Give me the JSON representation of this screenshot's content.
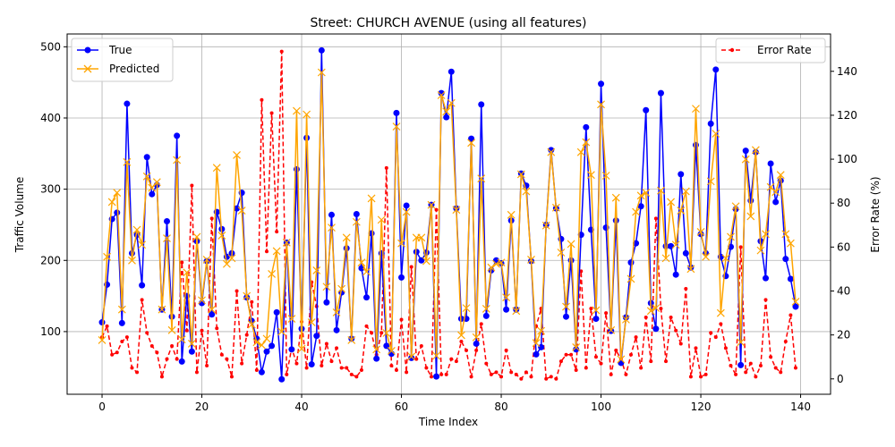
{
  "chart_data": {
    "type": "line",
    "title": "Street: CHURCH AVENUE (using all features)",
    "xlabel": "Time Index",
    "ylabel_left": "Traffic Volume",
    "ylabel_right": "Error Rate (%)",
    "xlim": [
      -7,
      146
    ],
    "ylim_left": [
      12,
      518
    ],
    "ylim_right": [
      -7,
      157
    ],
    "x_ticks": [
      0,
      20,
      40,
      60,
      80,
      100,
      120,
      140
    ],
    "y_ticks_left": [
      100,
      200,
      300,
      400,
      500
    ],
    "y_ticks_right": [
      0,
      20,
      40,
      60,
      80,
      100,
      120,
      140
    ],
    "grid": true,
    "legend_left_position": "upper-left",
    "legend_right_position": "upper-right",
    "colors": {
      "true": "#0000ff",
      "predicted": "#ffa500",
      "error": "#ff0000"
    },
    "series": [
      {
        "name": "True",
        "axis": "left",
        "values": [
          113,
          166,
          258,
          267,
          112,
          420,
          210,
          236,
          165,
          345,
          293,
          306,
          131,
          255,
          121,
          375,
          58,
          150,
          72,
          227,
          140,
          199,
          124,
          268,
          244,
          205,
          210,
          273,
          295,
          148,
          115,
          90,
          43,
          72,
          80,
          127,
          33,
          225,
          75,
          328,
          104,
          372,
          54,
          94,
          495,
          141,
          264,
          102,
          155,
          217,
          90,
          265,
          189,
          148,
          238,
          62,
          210,
          80,
          69,
          407,
          176,
          277,
          63,
          212,
          200,
          211,
          278,
          37,
          435,
          401,
          465,
          273,
          118,
          118,
          371,
          83,
          419,
          122,
          186,
          200,
          196,
          131,
          256,
          131,
          322,
          305,
          199,
          68,
          78,
          250,
          355,
          273,
          230,
          121,
          200,
          75,
          236,
          387,
          243,
          118,
          448,
          246,
          101,
          256,
          56,
          120,
          197,
          224,
          276,
          411,
          140,
          104,
          435,
          220,
          220,
          180,
          321,
          210,
          190,
          362,
          237,
          210,
          392,
          468,
          205,
          178,
          219,
          272,
          53,
          354,
          284,
          352,
          227,
          175,
          336,
          282,
          312,
          202,
          174,
          135
        ]
      },
      {
        "name": "Predicted",
        "axis": "left",
        "values": [
          88,
          205,
          282,
          295,
          131,
          338,
          200,
          243,
          222,
          318,
          302,
          310,
          131,
          231,
          102,
          341,
          89,
          183,
          83,
          233,
          144,
          201,
          131,
          330,
          235,
          195,
          203,
          348,
          270,
          150,
          110,
          85,
          81,
          90,
          181,
          213,
          100,
          225,
          118,
          410,
          76,
          405,
          113,
          186,
          464,
          163,
          246,
          127,
          160,
          232,
          88,
          254,
          197,
          184,
          287,
          75,
          257,
          98,
          73,
          388,
          224,
          268,
          65,
          232,
          232,
          199,
          278,
          66,
          432,
          409,
          421,
          271,
          95,
          133,
          365,
          92,
          315,
          132,
          190,
          195,
          197,
          148,
          264,
          129,
          321,
          297,
          201,
          84,
          101,
          249,
          352,
          274,
          211,
          135,
          223,
          78,
          352,
          366,
          320,
          130,
          419,
          319,
          102,
          288,
          61,
          117,
          174,
          268,
          291,
          295,
          129,
          133,
          298,
          203,
          282,
          222,
          270,
          297,
          188,
          413,
          240,
          205,
          311,
          378,
          126,
          203,
          233,
          276,
          85,
          342,
          262,
          355,
          214,
          237,
          303,
          296,
          320,
          237,
          224,
          142
        ]
      },
      {
        "name": "Error Rate",
        "axis": "right",
        "values": [
          19,
          24,
          11,
          12,
          17,
          19,
          5,
          3,
          36,
          21,
          15,
          12,
          1,
          9,
          15,
          9,
          53,
          22,
          88,
          3,
          22,
          6,
          73,
          23,
          11,
          9,
          1,
          40,
          7,
          20,
          35,
          4,
          127,
          58,
          121,
          67,
          149,
          2,
          14,
          7,
          26,
          5,
          44,
          33,
          6,
          16,
          8,
          14,
          5,
          5,
          2,
          1,
          4,
          24,
          21,
          11,
          21,
          96,
          6,
          4,
          27,
          3,
          51,
          9,
          15,
          5,
          1,
          77,
          2,
          2,
          9,
          8,
          17,
          13,
          1,
          13,
          25,
          7,
          2,
          3,
          1,
          13,
          3,
          2,
          0,
          3,
          1,
          24,
          32,
          0,
          1,
          0,
          8,
          11,
          11,
          4,
          49,
          5,
          32,
          10,
          7,
          30,
          2,
          13,
          9,
          2,
          11,
          19,
          5,
          28,
          8,
          73,
          32,
          8,
          28,
          22,
          16,
          41,
          1,
          14,
          1,
          2,
          21,
          19,
          25,
          14,
          6,
          2,
          60,
          3,
          7,
          1,
          6,
          36,
          10,
          5,
          3,
          17,
          29,
          5
        ]
      }
    ]
  }
}
